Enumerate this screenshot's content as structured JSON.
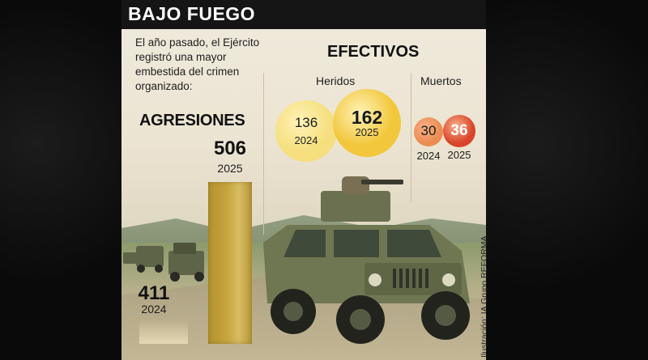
{
  "header": {
    "title": "BAJO FUEGO"
  },
  "intro_text": "El año pasado, el Ejército registró una mayor embestida del crimen organizado:",
  "credit": "Ilustración: IA Grupo REFORMA",
  "colors": {
    "bar_gold": "#c7a640",
    "bubble_yellow": "#f2c73c",
    "bubble_red": "#d9442a",
    "title_bg": "#151515"
  },
  "chart_data": [
    {
      "type": "bar",
      "title": "AGRESIONES",
      "categories": [
        "2024",
        "2025"
      ],
      "values": [
        411,
        506
      ]
    },
    {
      "type": "bubble",
      "title": "EFECTIVOS",
      "groups": [
        {
          "name": "Heridos",
          "categories": [
            "2024",
            "2025"
          ],
          "values": [
            136,
            162
          ]
        },
        {
          "name": "Muertos",
          "categories": [
            "2024",
            "2025"
          ],
          "values": [
            30,
            36
          ]
        }
      ]
    }
  ]
}
